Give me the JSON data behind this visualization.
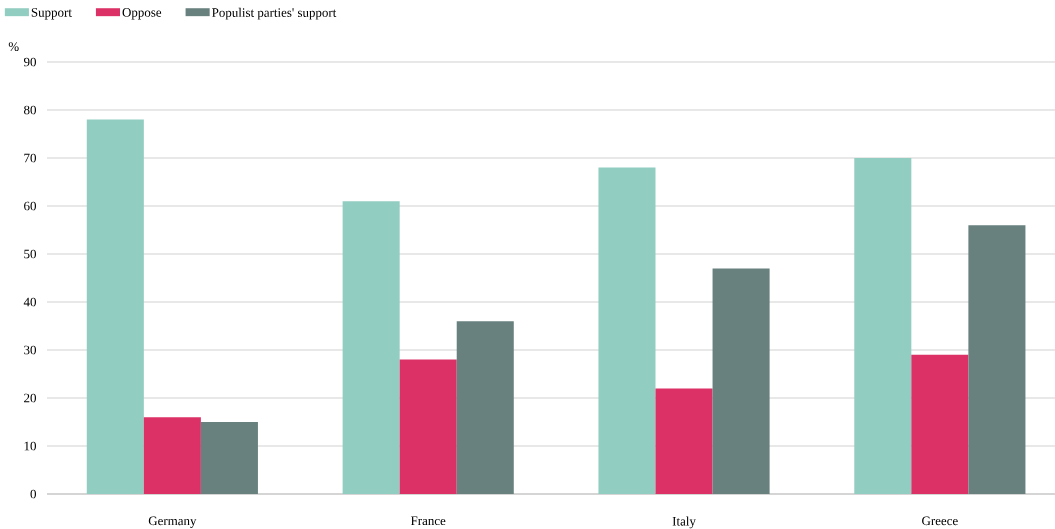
{
  "chart_data": {
    "type": "bar",
    "ylabel": "%",
    "categories": [
      "Germany",
      "France",
      "Italy",
      "Greece"
    ],
    "series": [
      {
        "name": "Support",
        "color": "#92cdc1",
        "values": [
          78,
          61,
          68,
          70
        ]
      },
      {
        "name": "Oppose",
        "color": "#dc3166",
        "values": [
          16,
          28,
          22,
          29
        ]
      },
      {
        "name": "Populist parties' support",
        "color": "#68807e",
        "values": [
          15,
          36,
          47,
          56
        ]
      }
    ],
    "ylim": [
      0,
      90
    ],
    "yticks": [
      0,
      10,
      20,
      30,
      40,
      50,
      60,
      70,
      80,
      90
    ],
    "grid": "y",
    "legend": "top left"
  }
}
